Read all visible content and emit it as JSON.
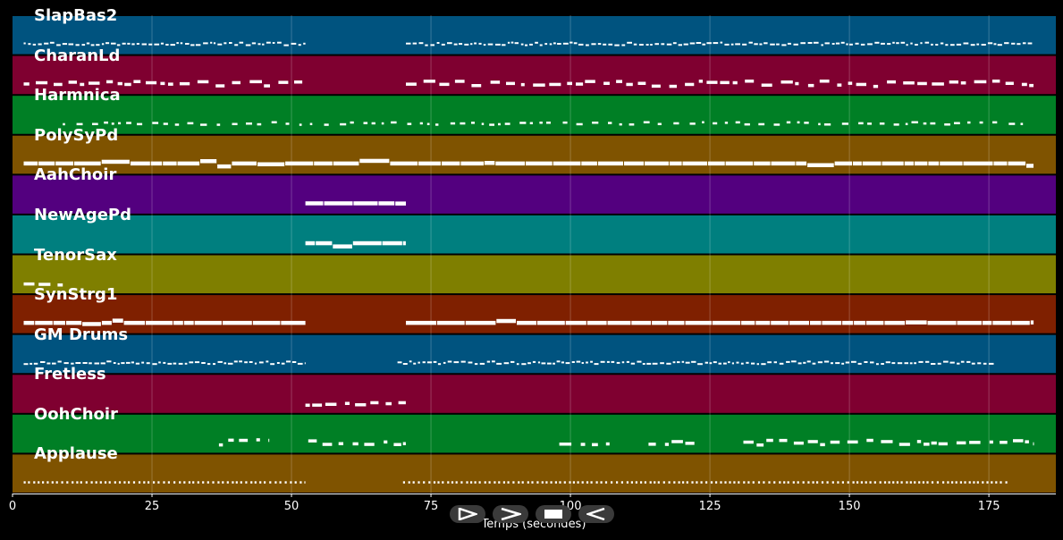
{
  "chart_data": {
    "type": "piano-roll",
    "xlabel": "Temps (secondes)",
    "xlim": [
      0,
      187
    ],
    "xticks": [
      0,
      25,
      50,
      75,
      100,
      125,
      150,
      175
    ],
    "grid": true,
    "tracks": [
      {
        "name": "SlapBas2",
        "color": "#00537f",
        "density": "dense-small",
        "segments": [
          [
            2,
            52.5
          ],
          [
            70.5,
            183
          ]
        ]
      },
      {
        "name": "CharanLd",
        "color": "#7f0030",
        "density": "medium",
        "segments": [
          [
            2,
            52.5
          ],
          [
            70.5,
            183
          ]
        ]
      },
      {
        "name": "Harmnica",
        "color": "#007f25",
        "density": "sparse-small",
        "segments": [
          [
            9,
            183
          ]
        ]
      },
      {
        "name": "PolySyPd",
        "color": "#7f5300",
        "density": "continuous",
        "segments": [
          [
            2,
            183
          ]
        ]
      },
      {
        "name": "AahChoir",
        "color": "#53007f",
        "density": "continuous",
        "segments": [
          [
            52.5,
            70.5
          ]
        ]
      },
      {
        "name": "NewAgePd",
        "color": "#007f7f",
        "density": "continuous",
        "segments": [
          [
            52.5,
            70.5
          ]
        ]
      },
      {
        "name": "TenorSax",
        "color": "#7f7f00",
        "density": "medium",
        "segments": [
          [
            2,
            9
          ]
        ]
      },
      {
        "name": "SynStrg1",
        "color": "#7f2000",
        "density": "continuous",
        "segments": [
          [
            2,
            52.5
          ],
          [
            70.5,
            183
          ]
        ]
      },
      {
        "name": "GM Drums",
        "color": "#00537f",
        "density": "dense-small",
        "segments": [
          [
            2,
            52.5
          ],
          [
            69,
            176
          ]
        ]
      },
      {
        "name": "Fretless",
        "color": "#7f0030",
        "density": "medium",
        "segments": [
          [
            52.5,
            70.5
          ]
        ]
      },
      {
        "name": "OohChoir",
        "color": "#007f25",
        "density": "medium",
        "segments": [
          [
            37,
            46
          ],
          [
            53,
            70.5
          ],
          [
            98,
            107
          ],
          [
            114,
            123
          ],
          [
            131,
            183
          ]
        ]
      },
      {
        "name": "Applause",
        "color": "#7f5300",
        "density": "dotted",
        "segments": [
          [
            2,
            52.5
          ],
          [
            70,
            178.5
          ]
        ]
      }
    ]
  },
  "controls": {
    "icons": [
      "play-icon",
      "fast-forward-icon",
      "stop-icon",
      "rewind-icon"
    ],
    "background": "#3a3a3a"
  }
}
